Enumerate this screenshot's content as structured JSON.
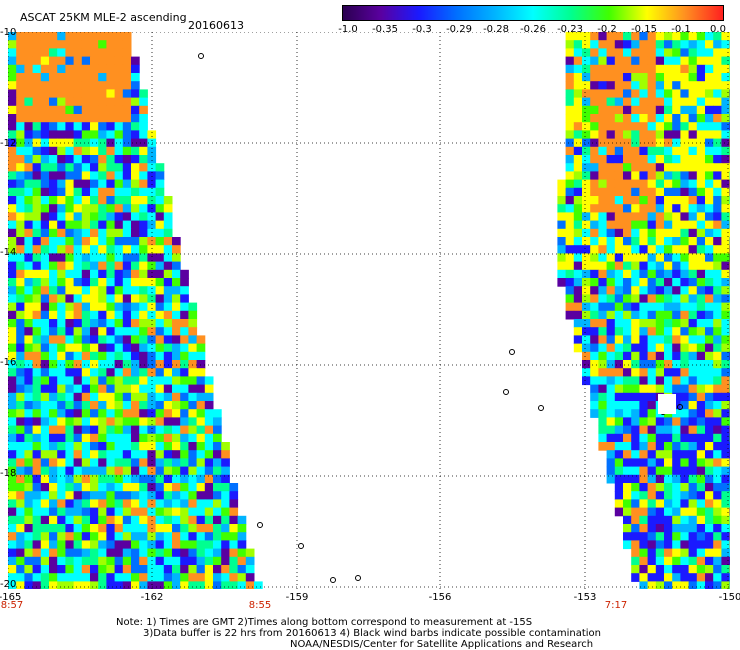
{
  "header": {
    "title": "ASCAT 25KM MLE-2 ascending",
    "date": "20160613"
  },
  "colorbar": {
    "ticks": [
      "-1.0",
      "-0.35",
      "-0.3",
      "-0.29",
      "-0.28",
      "-0.26",
      "-0.23",
      "-0.2",
      "-0.15",
      "-0.1",
      "0.0"
    ],
    "colors": [
      "#2b0050",
      "#5a00a0",
      "#1a1aff",
      "#0070ff",
      "#00b4ff",
      "#00ffff",
      "#00ff90",
      "#40ff00",
      "#ffff00",
      "#ff9020",
      "#ff2020"
    ]
  },
  "axes": {
    "lat_labels": [
      "-10",
      "-12",
      "-14",
      "-16",
      "-18",
      "-20"
    ],
    "lon_labels": [
      "-165",
      "-162",
      "-159",
      "-156",
      "-153",
      "-150"
    ]
  },
  "times": [
    "8:57",
    "8:55",
    "7:17"
  ],
  "notes": {
    "line1": "Note: 1) Times are GMT 2)Times along bottom correspond to measurement at -15S",
    "line2": "3)Data buffer is 22 hrs from 20160613 4) Black wind barbs indicate possible contamination",
    "line3": "NOAA/NESDIS/Center for Satellite Applications and Research"
  }
}
